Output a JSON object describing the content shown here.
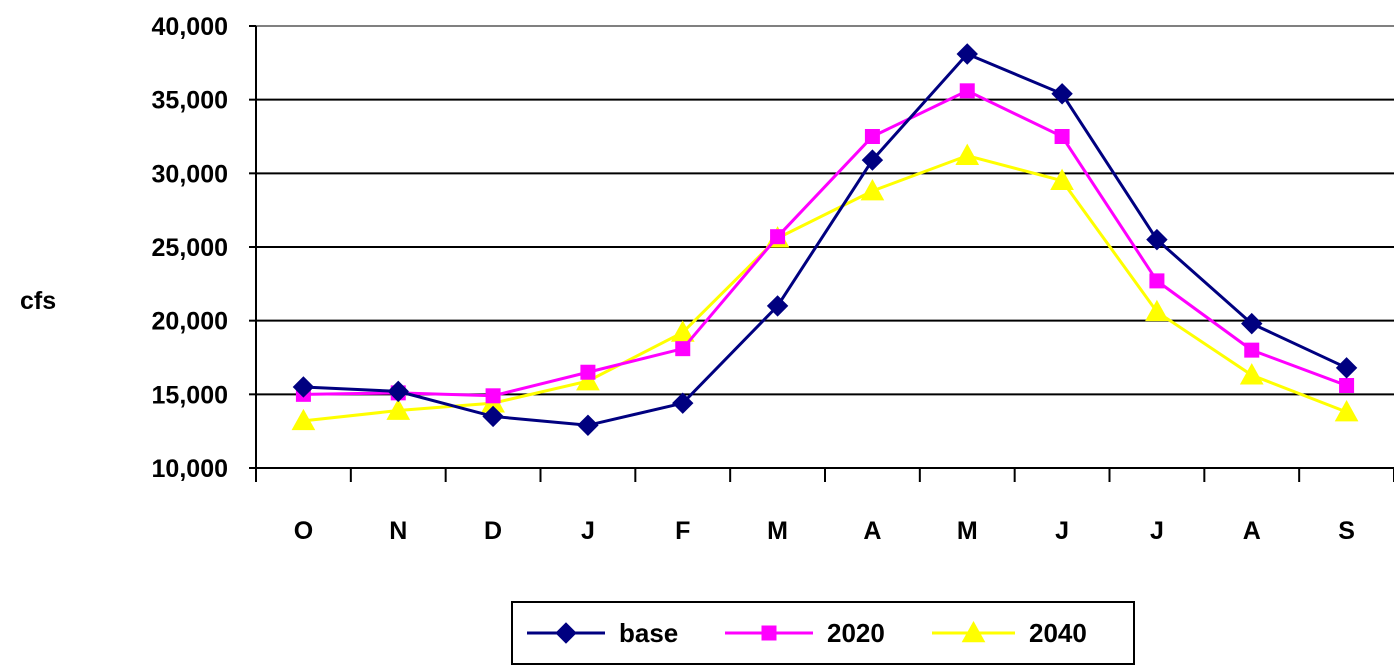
{
  "chart_data": {
    "type": "line",
    "categories": [
      "O",
      "N",
      "D",
      "J",
      "F",
      "M",
      "A",
      "M",
      "J",
      "J",
      "A",
      "S"
    ],
    "ylabel": "cfs",
    "ylim": [
      10000,
      40000
    ],
    "yticks": [
      {
        "value": 10000,
        "label": "10,000"
      },
      {
        "value": 15000,
        "label": "15,000"
      },
      {
        "value": 20000,
        "label": "20,000"
      },
      {
        "value": 25000,
        "label": "25,000"
      },
      {
        "value": 30000,
        "label": "30,000"
      },
      {
        "value": 35000,
        "label": "35,000"
      },
      {
        "value": 40000,
        "label": "40,000"
      }
    ],
    "grid": true,
    "legend_position": "bottom",
    "series": [
      {
        "name": "base",
        "color": "#000080",
        "marker": "diamond",
        "values": [
          15500,
          15200,
          13500,
          12900,
          14400,
          21000,
          30900,
          38100,
          35400,
          25500,
          19800,
          16800
        ]
      },
      {
        "name": "2020",
        "color": "#FF00FF",
        "marker": "square",
        "values": [
          15000,
          15100,
          14900,
          16500,
          18100,
          25700,
          32500,
          35600,
          32500,
          22700,
          18000,
          15600
        ]
      },
      {
        "name": "2040",
        "color": "#FFFF00",
        "marker": "triangle",
        "values": [
          13200,
          13900,
          14400,
          15900,
          19200,
          25600,
          28800,
          31200,
          29500,
          20600,
          16300,
          13800
        ]
      }
    ]
  }
}
